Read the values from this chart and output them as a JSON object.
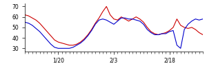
{
  "red_y": [
    62,
    61,
    59,
    57,
    54,
    50,
    46,
    42,
    38,
    36,
    35,
    34,
    33,
    33,
    34,
    36,
    39,
    43,
    48,
    54,
    59,
    65,
    70,
    62,
    58,
    57,
    60,
    58,
    56,
    58,
    60,
    58,
    55,
    50,
    46,
    44,
    43,
    44,
    45,
    47,
    50,
    58,
    52,
    50,
    49,
    50,
    48,
    45,
    43
  ],
  "blue_y": [
    55,
    54,
    52,
    49,
    46,
    42,
    38,
    34,
    31,
    30,
    30,
    30,
    30,
    31,
    33,
    35,
    38,
    42,
    47,
    53,
    57,
    58,
    57,
    55,
    53,
    56,
    59,
    59,
    58,
    58,
    57,
    56,
    53,
    48,
    45,
    43,
    43,
    44,
    44,
    46,
    47,
    33,
    30,
    48,
    53,
    56,
    58,
    57,
    58
  ],
  "ytick_positions": [
    30,
    40,
    50,
    60,
    70
  ],
  "ytick_labels": [
    "30",
    "40",
    "50",
    "60",
    "70"
  ],
  "ylim": [
    27,
    73
  ],
  "xlim_max": 48,
  "xtick_labels": [
    "1/20",
    "2/3",
    "2/18"
  ],
  "xtick_positions": [
    9,
    24,
    39
  ],
  "red_color": "#cc0000",
  "blue_color": "#0000cc",
  "bg_color": "#ffffff",
  "linewidth": 0.8
}
